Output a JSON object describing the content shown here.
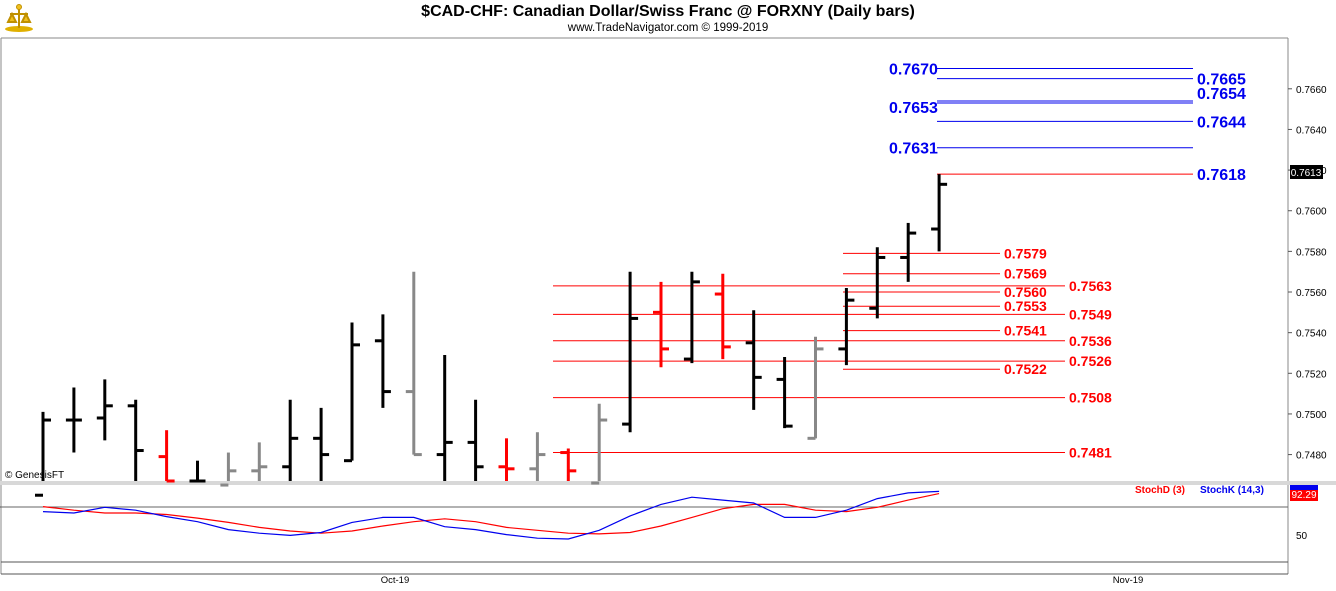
{
  "header": {
    "title": "$CAD-CHF:  Canadian Dollar/Swiss Franc @ FORXNY  (Daily bars)",
    "subtitle": "www.TradeNavigator.com © 1999-2019",
    "watermark": "© GenesisFT"
  },
  "chart_data": [
    {
      "type": "ohlc",
      "title": "$CAD-CHF:  Canadian Dollar/Swiss Franc @ FORXNY  (Daily bars)",
      "ylim": [
        0.7467,
        0.7685
      ],
      "yticks": [
        "0.7480",
        "0.7500",
        "0.7520",
        "0.7540",
        "0.7560",
        "0.7580",
        "0.7600",
        "0.7620",
        "0.7640",
        "0.7660"
      ],
      "last_price": "0.7613",
      "xticks": [
        "Oct-19",
        "Nov-19"
      ],
      "bar_colors": {
        "up": "#000000",
        "down": "#ff0000",
        "neutral": "#888888"
      },
      "bars": [
        {
          "o": 0.746,
          "h": 0.7501,
          "l": 0.7455,
          "c": 0.7497,
          "color": "#000000"
        },
        {
          "o": 0.7497,
          "h": 0.7513,
          "l": 0.7481,
          "c": 0.7497,
          "color": "#000000"
        },
        {
          "o": 0.7498,
          "h": 0.7517,
          "l": 0.7487,
          "c": 0.7504,
          "color": "#000000"
        },
        {
          "o": 0.7504,
          "h": 0.7507,
          "l": 0.746,
          "c": 0.7482,
          "color": "#000000"
        },
        {
          "o": 0.7479,
          "h": 0.7492,
          "l": 0.746,
          "c": 0.7467,
          "color": "#ff0000"
        },
        {
          "o": 0.7467,
          "h": 0.7477,
          "l": 0.746,
          "c": 0.7467,
          "color": "#000000"
        },
        {
          "o": 0.7465,
          "h": 0.7481,
          "l": 0.746,
          "c": 0.7472,
          "color": "#888888"
        },
        {
          "o": 0.7472,
          "h": 0.7486,
          "l": 0.746,
          "c": 0.7474,
          "color": "#888888"
        },
        {
          "o": 0.7474,
          "h": 0.7507,
          "l": 0.746,
          "c": 0.7488,
          "color": "#000000"
        },
        {
          "o": 0.7488,
          "h": 0.7503,
          "l": 0.746,
          "c": 0.748,
          "color": "#000000"
        },
        {
          "o": 0.7477,
          "h": 0.7545,
          "l": 0.7477,
          "c": 0.7534,
          "color": "#000000"
        },
        {
          "o": 0.7536,
          "h": 0.7549,
          "l": 0.7503,
          "c": 0.7511,
          "color": "#000000"
        },
        {
          "o": 0.7511,
          "h": 0.757,
          "l": 0.748,
          "c": 0.748,
          "color": "#888888"
        },
        {
          "o": 0.748,
          "h": 0.7529,
          "l": 0.746,
          "c": 0.7486,
          "color": "#000000"
        },
        {
          "o": 0.7486,
          "h": 0.7507,
          "l": 0.746,
          "c": 0.7474,
          "color": "#000000"
        },
        {
          "o": 0.7474,
          "h": 0.7488,
          "l": 0.746,
          "c": 0.7473,
          "color": "#ff0000"
        },
        {
          "o": 0.7473,
          "h": 0.7491,
          "l": 0.746,
          "c": 0.748,
          "color": "#888888"
        },
        {
          "o": 0.7481,
          "h": 0.7483,
          "l": 0.746,
          "c": 0.7472,
          "color": "#ff0000"
        },
        {
          "o": 0.7466,
          "h": 0.7505,
          "l": 0.746,
          "c": 0.7497,
          "color": "#888888"
        },
        {
          "o": 0.7495,
          "h": 0.757,
          "l": 0.7491,
          "c": 0.7547,
          "color": "#000000"
        },
        {
          "o": 0.755,
          "h": 0.7565,
          "l": 0.7523,
          "c": 0.7532,
          "color": "#ff0000"
        },
        {
          "o": 0.7527,
          "h": 0.757,
          "l": 0.7525,
          "c": 0.7565,
          "color": "#000000"
        },
        {
          "o": 0.7559,
          "h": 0.7569,
          "l": 0.7527,
          "c": 0.7533,
          "color": "#ff0000"
        },
        {
          "o": 0.7535,
          "h": 0.7551,
          "l": 0.7502,
          "c": 0.7518,
          "color": "#000000"
        },
        {
          "o": 0.7517,
          "h": 0.7528,
          "l": 0.7493,
          "c": 0.7494,
          "color": "#000000"
        },
        {
          "o": 0.7488,
          "h": 0.7538,
          "l": 0.7488,
          "c": 0.7532,
          "color": "#888888"
        },
        {
          "o": 0.7532,
          "h": 0.7562,
          "l": 0.7524,
          "c": 0.7556,
          "color": "#000000"
        },
        {
          "o": 0.7552,
          "h": 0.7582,
          "l": 0.7547,
          "c": 0.7577,
          "color": "#000000"
        },
        {
          "o": 0.7577,
          "h": 0.7594,
          "l": 0.7565,
          "c": 0.7589,
          "color": "#000000"
        },
        {
          "o": 0.7591,
          "h": 0.7618,
          "l": 0.758,
          "c": 0.7613,
          "color": "#000000"
        }
      ],
      "levels": [
        {
          "value": 0.767,
          "label": "0.7670",
          "color": "#0000ee",
          "side": "left"
        },
        {
          "value": 0.7665,
          "label": "0.7665",
          "color": "#0000ee",
          "side": "right"
        },
        {
          "value": 0.7654,
          "label": "0.7654",
          "color": "#0000ee",
          "side": "right"
        },
        {
          "value": 0.7653,
          "label": "0.7653",
          "color": "#0000ee",
          "side": "left"
        },
        {
          "value": 0.7644,
          "label": "0.7644",
          "color": "#0000ee",
          "side": "right"
        },
        {
          "value": 0.7631,
          "label": "0.7631",
          "color": "#0000ee",
          "side": "left"
        },
        {
          "value": 0.7618,
          "label": "0.7618",
          "color": "#0000ee",
          "side": "right",
          "linecolor": "#ff0000"
        },
        {
          "value": 0.7579,
          "label": "0.7579",
          "color": "#ff0000",
          "side": "mid"
        },
        {
          "value": 0.7569,
          "label": "0.7569",
          "color": "#ff0000",
          "side": "mid"
        },
        {
          "value": 0.7563,
          "label": "0.7563",
          "color": "#ff0000",
          "side": "long"
        },
        {
          "value": 0.756,
          "label": "0.7560",
          "color": "#ff0000",
          "side": "mid"
        },
        {
          "value": 0.7553,
          "label": "0.7553",
          "color": "#ff0000",
          "side": "mid"
        },
        {
          "value": 0.7549,
          "label": "0.7549",
          "color": "#ff0000",
          "side": "long"
        },
        {
          "value": 0.7541,
          "label": "0.7541",
          "color": "#ff0000",
          "side": "mid"
        },
        {
          "value": 0.7536,
          "label": "0.7536",
          "color": "#ff0000",
          "side": "long"
        },
        {
          "value": 0.7526,
          "label": "0.7526",
          "color": "#ff0000",
          "side": "long"
        },
        {
          "value": 0.7522,
          "label": "0.7522",
          "color": "#ff0000",
          "side": "mid"
        },
        {
          "value": 0.7508,
          "label": "0.7508",
          "color": "#ff0000",
          "side": "long"
        },
        {
          "value": 0.7481,
          "label": "0.7481",
          "color": "#ff0000",
          "side": "long"
        }
      ]
    },
    {
      "type": "line",
      "ylim": [
        0,
        100
      ],
      "yticks": [
        "50"
      ],
      "last_value": "92.29",
      "series": [
        {
          "name": "StochD (3)",
          "color": "#ff0000",
          "values": [
            77,
            72,
            68,
            68,
            66,
            61,
            55,
            48,
            43,
            40,
            43,
            50,
            56,
            60,
            56,
            48,
            44,
            40,
            39,
            41,
            50,
            62,
            74,
            80,
            80,
            72,
            70,
            76,
            86,
            95
          ]
        },
        {
          "name": "StochK (14,3)",
          "color": "#0000ee",
          "values": [
            70,
            68,
            76,
            72,
            63,
            56,
            45,
            40,
            37,
            41,
            55,
            62,
            62,
            49,
            45,
            38,
            33,
            32,
            44,
            64,
            80,
            90,
            86,
            82,
            62,
            62,
            72,
            88,
            96,
            98
          ]
        }
      ]
    }
  ]
}
